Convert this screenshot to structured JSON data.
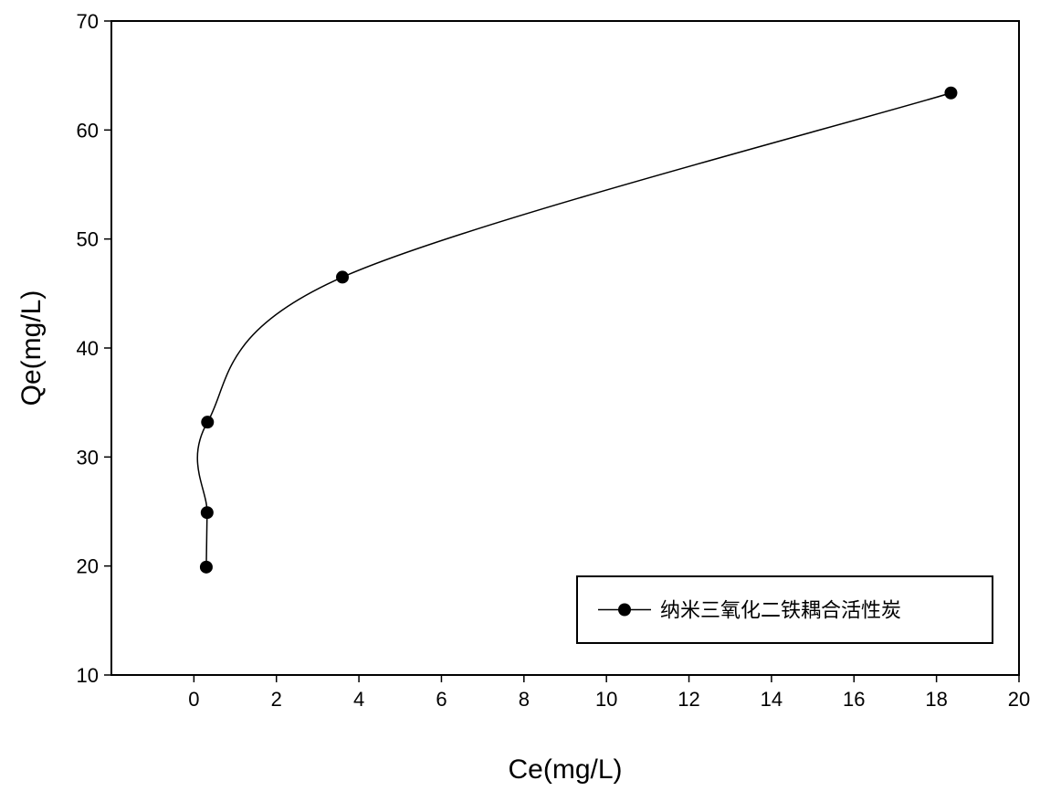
{
  "chart_data": {
    "type": "line",
    "xlabel": "Ce(mg/L)",
    "ylabel": "Qe(mg/L)",
    "xlim": [
      -2,
      20
    ],
    "ylim": [
      10,
      70
    ],
    "x_ticks": [
      0,
      2,
      4,
      6,
      8,
      10,
      12,
      14,
      16,
      18,
      20
    ],
    "y_ticks": [
      10,
      20,
      30,
      40,
      50,
      60,
      70
    ],
    "grid": false,
    "legend_position": "bottom-right",
    "marker_color": "#000000",
    "line_color": "#000000",
    "series": [
      {
        "name": "纳米三氧化二铁耦合活性炭",
        "marker": "circle",
        "points": [
          {
            "x": 0.3,
            "y": 19.9
          },
          {
            "x": 0.32,
            "y": 24.9
          },
          {
            "x": 0.33,
            "y": 33.2
          },
          {
            "x": 3.6,
            "y": 46.5
          },
          {
            "x": 18.35,
            "y": 63.4
          }
        ]
      }
    ]
  }
}
